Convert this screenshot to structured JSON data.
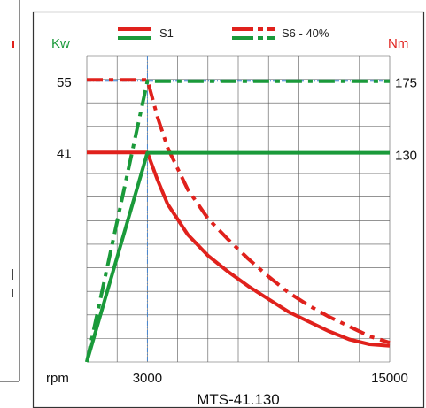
{
  "colors": {
    "power": "#1a9a3a",
    "torque": "#e0211c",
    "grid": "#555555",
    "ref_line": "#3a7fd0",
    "frame": "#333333",
    "stray_mark": "#e0211c"
  },
  "chart_data": {
    "type": "line",
    "title": "MTS-41.130",
    "xlabel": "rpm",
    "left_axis_label": "Kw",
    "right_axis_label": "Nm",
    "x_range": [
      0,
      15000
    ],
    "left_range": [
      0,
      60
    ],
    "right_range": [
      0,
      190
    ],
    "x_ticks": [
      3000,
      15000
    ],
    "left_ticks": [
      41,
      55
    ],
    "right_ticks": [
      130,
      175
    ],
    "grid": true,
    "legend": {
      "placement": "top",
      "entries": [
        {
          "label": "S1",
          "style": "solid"
        },
        {
          "label": "S6 - 40%",
          "style": "dashed"
        }
      ]
    },
    "series": [
      {
        "name": "S1",
        "quantity": "power",
        "axis": "left",
        "style": "solid",
        "points": [
          [
            0,
            0
          ],
          [
            3000,
            41
          ],
          [
            15000,
            41
          ]
        ]
      },
      {
        "name": "S1",
        "quantity": "torque",
        "axis": "right",
        "style": "solid",
        "points": [
          [
            0,
            130
          ],
          [
            3000,
            130
          ],
          [
            3500,
            113
          ],
          [
            4000,
            98
          ],
          [
            5000,
            79
          ],
          [
            6000,
            66
          ],
          [
            7000,
            56
          ],
          [
            8000,
            47
          ],
          [
            9000,
            39
          ],
          [
            10000,
            31
          ],
          [
            11000,
            25
          ],
          [
            12000,
            19
          ],
          [
            13000,
            14
          ],
          [
            14000,
            11
          ],
          [
            15000,
            10
          ]
        ]
      },
      {
        "name": "S6 - 40%",
        "quantity": "power",
        "axis": "left",
        "style": "dashed",
        "points": [
          [
            0,
            0
          ],
          [
            3000,
            55
          ],
          [
            15000,
            55
          ]
        ]
      },
      {
        "name": "S6 - 40%",
        "quantity": "torque",
        "axis": "right",
        "style": "dashed",
        "points": [
          [
            0,
            175
          ],
          [
            3000,
            175
          ],
          [
            3500,
            152
          ],
          [
            4000,
            133
          ],
          [
            5000,
            107
          ],
          [
            6000,
            89
          ],
          [
            7000,
            76
          ],
          [
            8000,
            64
          ],
          [
            9000,
            53
          ],
          [
            10000,
            43
          ],
          [
            11000,
            35
          ],
          [
            12000,
            28
          ],
          [
            13000,
            22
          ],
          [
            14000,
            16
          ],
          [
            15000,
            12
          ]
        ]
      }
    ]
  }
}
